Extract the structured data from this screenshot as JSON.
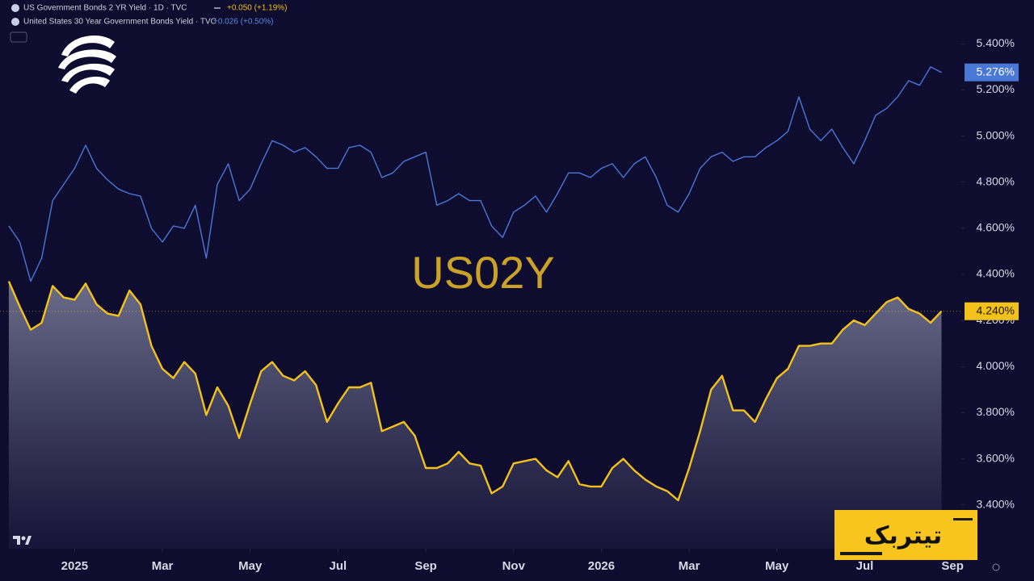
{
  "chart_data": {
    "type": "line",
    "title": "US02Y",
    "legend": [
      {
        "text": "US Government Bonds 2 YR Yield · 1D · TVC",
        "change": "+0.050 (+1.19%)"
      },
      {
        "text": "United States 30 Year Government Bonds Yield · TVC",
        "change": "+0.026 (+0.50%)"
      }
    ],
    "badge": "تیتربک",
    "xlim": [
      -1.7,
      20.2
    ],
    "xticks": [
      {
        "value": 0,
        "label": "2025"
      },
      {
        "value": 2,
        "label": "Mar"
      },
      {
        "value": 4,
        "label": "May"
      },
      {
        "value": 6,
        "label": "Jul"
      },
      {
        "value": 8,
        "label": "Sep"
      },
      {
        "value": 10,
        "label": "Nov"
      },
      {
        "value": 12,
        "label": "2026"
      },
      {
        "value": 14,
        "label": "Mar"
      },
      {
        "value": 16,
        "label": "May"
      },
      {
        "value": 18,
        "label": "Jul"
      },
      {
        "value": 20,
        "label": "Sep"
      }
    ],
    "ylim": [
      3.21,
      5.59
    ],
    "yticks": [
      {
        "value": 3.4,
        "label": "3.400%"
      },
      {
        "value": 3.6,
        "label": "3.600%"
      },
      {
        "value": 3.8,
        "label": "3.800%"
      },
      {
        "value": 4.0,
        "label": "4.000%"
      },
      {
        "value": 4.2,
        "label": "4.200%"
      },
      {
        "value": 4.4,
        "label": "4.400%"
      },
      {
        "value": 4.6,
        "label": "4.600%"
      },
      {
        "value": 4.8,
        "label": "4.800%"
      },
      {
        "value": 5.0,
        "label": "5.000%"
      },
      {
        "value": 5.2,
        "label": "5.200%"
      },
      {
        "value": 5.4,
        "label": "5.400%"
      }
    ],
    "x": [
      -1.5,
      -1.25,
      -1,
      -0.75,
      -0.5,
      -0.25,
      0,
      0.25,
      0.5,
      0.75,
      1,
      1.25,
      1.5,
      1.75,
      2,
      2.25,
      2.5,
      2.75,
      3,
      3.25,
      3.5,
      3.75,
      4,
      4.25,
      4.5,
      4.75,
      5,
      5.25,
      5.5,
      5.75,
      6,
      6.25,
      6.5,
      6.75,
      7,
      7.25,
      7.5,
      7.75,
      8,
      8.25,
      8.5,
      8.75,
      9,
      9.25,
      9.5,
      9.75,
      10,
      10.25,
      10.5,
      10.75,
      11,
      11.25,
      11.5,
      11.75,
      12,
      12.25,
      12.5,
      12.75,
      13,
      13.25,
      13.5,
      13.75,
      14,
      14.25,
      14.5,
      14.75,
      15,
      15.25,
      15.5,
      15.75,
      16,
      16.25,
      16.5,
      16.75,
      17,
      17.25,
      17.5,
      17.75,
      18,
      18.25,
      18.5,
      18.75,
      19,
      19.25,
      19.5,
      19.75
    ],
    "series": [
      {
        "name": "US02Y",
        "color": "#f2c21b",
        "fill": true,
        "last_label": "4.240%",
        "values": [
          4.37,
          4.26,
          4.16,
          4.19,
          4.35,
          4.3,
          4.29,
          4.36,
          4.27,
          4.23,
          4.22,
          4.33,
          4.27,
          4.09,
          3.99,
          3.95,
          4.02,
          3.97,
          3.79,
          3.91,
          3.83,
          3.69,
          3.84,
          3.98,
          4.02,
          3.96,
          3.94,
          3.98,
          3.92,
          3.76,
          3.84,
          3.91,
          3.91,
          3.93,
          3.72,
          3.74,
          3.76,
          3.7,
          3.56,
          3.56,
          3.58,
          3.63,
          3.58,
          3.57,
          3.45,
          3.48,
          3.58,
          3.59,
          3.6,
          3.55,
          3.52,
          3.59,
          3.49,
          3.48,
          3.48,
          3.56,
          3.6,
          3.55,
          3.51,
          3.48,
          3.46,
          3.42,
          3.56,
          3.72,
          3.9,
          3.96,
          3.81,
          3.81,
          3.76,
          3.86,
          3.95,
          3.99,
          4.09,
          4.09,
          4.1,
          4.1,
          4.16,
          4.2,
          4.18,
          4.23,
          4.28,
          4.3,
          4.25,
          4.23,
          4.19,
          4.24
        ]
      },
      {
        "name": "US30Y",
        "color": "#4a78d6",
        "fill": false,
        "last_label": "5.276%",
        "values": [
          4.61,
          4.54,
          4.37,
          4.47,
          4.72,
          4.79,
          4.86,
          4.96,
          4.86,
          4.81,
          4.77,
          4.75,
          4.74,
          4.6,
          4.54,
          4.61,
          4.6,
          4.7,
          4.47,
          4.79,
          4.88,
          4.72,
          4.77,
          4.88,
          4.98,
          4.96,
          4.93,
          4.95,
          4.91,
          4.86,
          4.86,
          4.95,
          4.96,
          4.93,
          4.82,
          4.84,
          4.89,
          4.91,
          4.93,
          4.7,
          4.72,
          4.75,
          4.72,
          4.72,
          4.61,
          4.56,
          4.67,
          4.7,
          4.74,
          4.67,
          4.75,
          4.84,
          4.84,
          4.82,
          4.86,
          4.88,
          4.82,
          4.88,
          4.91,
          4.82,
          4.7,
          4.67,
          4.75,
          4.86,
          4.91,
          4.93,
          4.89,
          4.91,
          4.91,
          4.95,
          4.98,
          5.02,
          5.17,
          5.03,
          4.98,
          5.03,
          4.95,
          4.88,
          4.98,
          5.09,
          5.12,
          5.17,
          5.24,
          5.22,
          5.3,
          5.276
        ]
      }
    ]
  }
}
